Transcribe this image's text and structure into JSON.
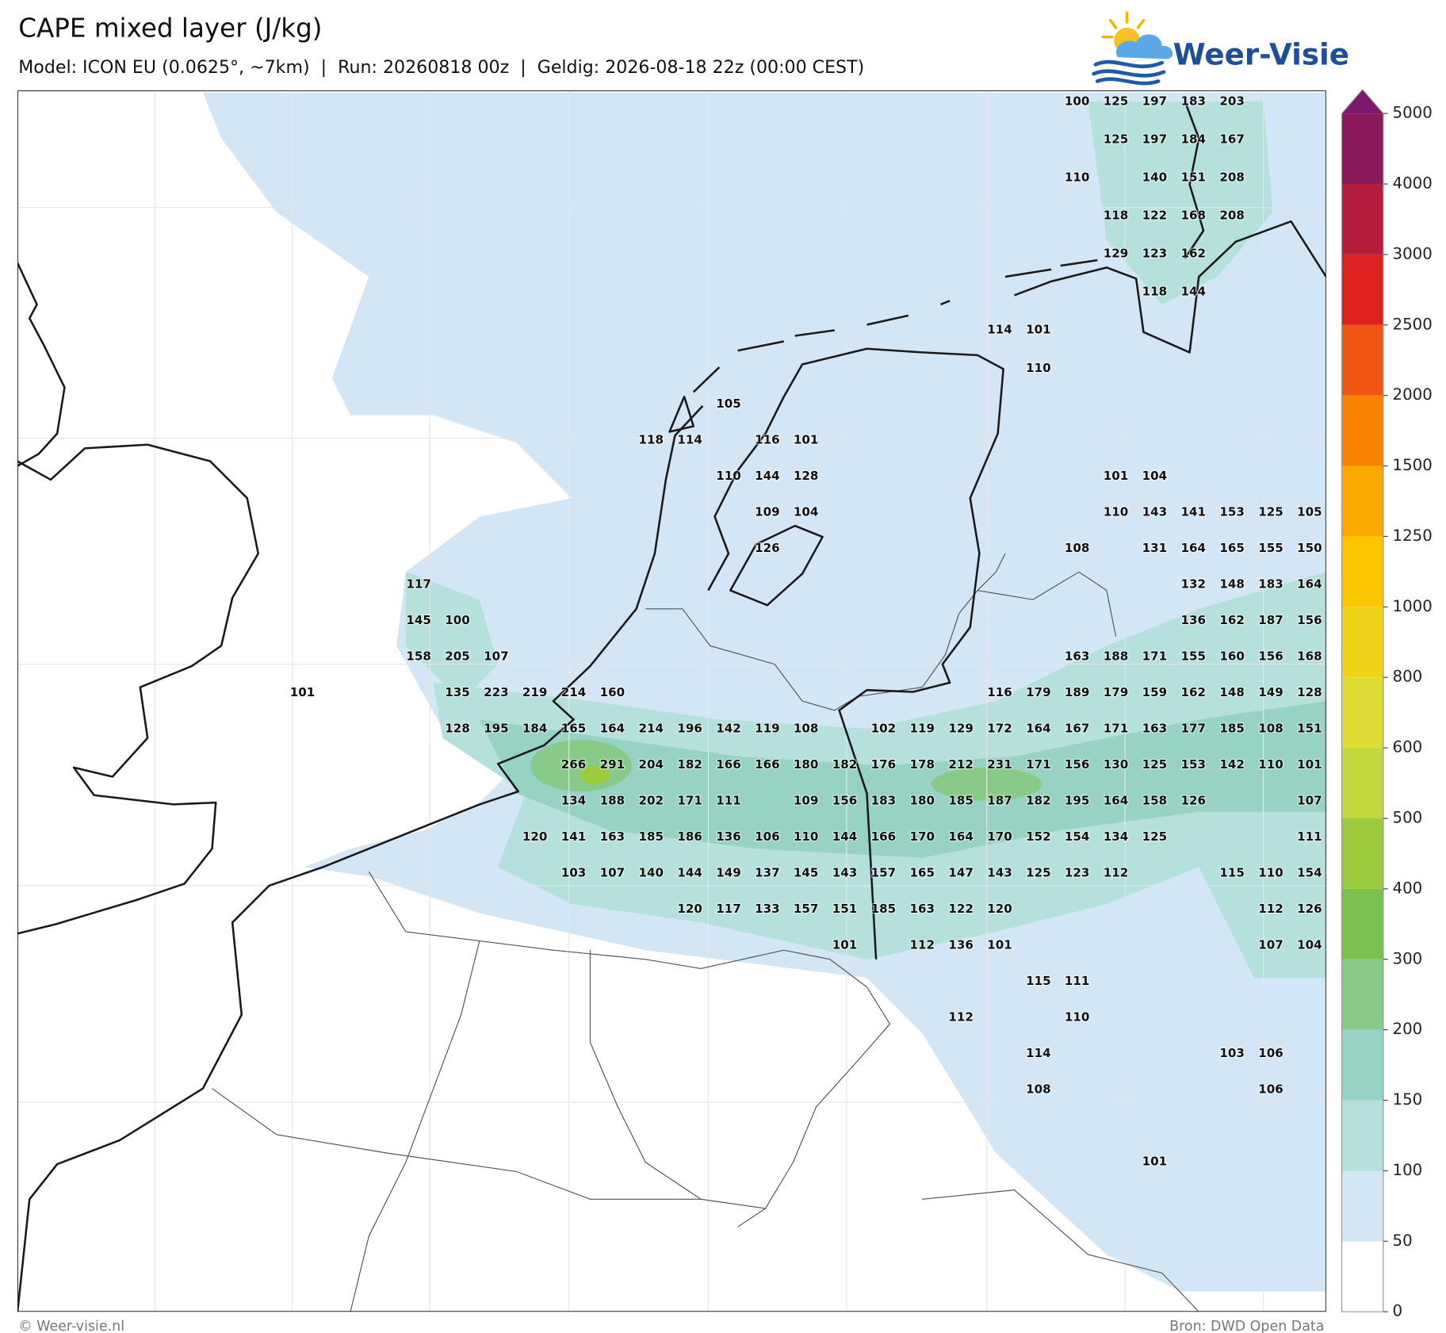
{
  "header": {
    "title": "CAPE mixed layer (J/kg)",
    "subtitle": "Model: ICON EU (0.0625°, ~7km)  |  Run: 20260818 00z  |  Geldig: 2026-08-18 22z (00:00 CEST)"
  },
  "logo": {
    "text": "Weer-Visie"
  },
  "map": {
    "labels": [
      [
        null,
        null,
        null,
        null,
        null,
        null,
        null,
        null,
        null,
        null,
        null,
        null,
        null,
        null,
        null,
        null,
        null,
        null,
        null,
        null,
        100,
        125,
        197,
        183,
        203,
        null,
        null
      ],
      [
        null,
        null,
        null,
        null,
        null,
        null,
        null,
        null,
        null,
        null,
        null,
        null,
        null,
        null,
        null,
        null,
        null,
        null,
        null,
        null,
        null,
        125,
        197,
        184,
        167,
        null,
        null
      ],
      [
        null,
        null,
        null,
        null,
        null,
        null,
        null,
        null,
        null,
        null,
        null,
        null,
        null,
        null,
        null,
        null,
        null,
        null,
        null,
        null,
        110,
        null,
        140,
        151,
        208,
        null,
        null
      ],
      [
        null,
        null,
        null,
        null,
        null,
        null,
        null,
        null,
        null,
        null,
        null,
        null,
        null,
        null,
        null,
        null,
        null,
        null,
        null,
        null,
        null,
        118,
        122,
        168,
        208,
        null,
        null
      ],
      [
        null,
        null,
        null,
        null,
        null,
        null,
        null,
        null,
        null,
        null,
        null,
        null,
        null,
        null,
        null,
        null,
        null,
        null,
        null,
        null,
        null,
        129,
        123,
        162,
        null,
        null,
        null
      ],
      [
        null,
        null,
        null,
        null,
        null,
        null,
        null,
        null,
        null,
        null,
        null,
        null,
        null,
        null,
        null,
        null,
        null,
        null,
        null,
        null,
        null,
        null,
        118,
        144,
        null,
        null,
        null
      ],
      [
        null,
        null,
        null,
        null,
        null,
        null,
        null,
        null,
        null,
        null,
        null,
        null,
        null,
        null,
        null,
        null,
        null,
        null,
        114,
        101,
        null,
        null,
        null,
        null,
        null,
        null,
        null
      ],
      [
        null,
        null,
        null,
        null,
        null,
        null,
        null,
        null,
        null,
        null,
        null,
        null,
        null,
        null,
        null,
        null,
        null,
        null,
        null,
        110,
        null,
        null,
        null,
        null,
        null,
        null,
        null
      ],
      [
        null,
        null,
        null,
        null,
        null,
        null,
        null,
        null,
        null,
        null,
        null,
        105,
        null,
        null,
        null,
        null,
        null,
        null,
        null,
        null,
        null,
        null,
        null,
        null,
        null,
        null,
        null
      ],
      [
        null,
        null,
        null,
        null,
        null,
        null,
        null,
        null,
        null,
        118,
        114,
        null,
        116,
        101,
        null,
        null,
        null,
        null,
        null,
        null,
        null,
        null,
        null,
        null,
        null,
        null,
        null
      ],
      [
        null,
        null,
        null,
        null,
        null,
        null,
        null,
        null,
        null,
        null,
        null,
        110,
        144,
        128,
        null,
        null,
        null,
        null,
        null,
        null,
        null,
        101,
        104,
        null,
        null,
        null,
        null
      ],
      [
        null,
        null,
        null,
        null,
        null,
        null,
        null,
        null,
        null,
        null,
        null,
        null,
        109,
        104,
        null,
        null,
        null,
        null,
        null,
        null,
        null,
        110,
        143,
        141,
        153,
        125,
        105
      ],
      [
        null,
        null,
        null,
        null,
        null,
        null,
        null,
        null,
        null,
        null,
        null,
        null,
        126,
        null,
        null,
        null,
        null,
        null,
        null,
        null,
        108,
        null,
        131,
        164,
        165,
        155,
        150
      ],
      [
        null,
        null,
        null,
        117,
        null,
        null,
        null,
        null,
        null,
        null,
        null,
        null,
        null,
        null,
        null,
        null,
        null,
        null,
        null,
        null,
        null,
        null,
        null,
        132,
        148,
        183,
        164
      ],
      [
        null,
        null,
        null,
        145,
        100,
        null,
        null,
        null,
        null,
        null,
        null,
        null,
        null,
        null,
        null,
        null,
        null,
        null,
        null,
        null,
        null,
        null,
        null,
        136,
        162,
        187,
        156
      ],
      [
        null,
        null,
        null,
        158,
        205,
        107,
        null,
        null,
        null,
        null,
        null,
        null,
        null,
        null,
        null,
        null,
        null,
        null,
        null,
        null,
        163,
        188,
        171,
        155,
        160,
        156,
        168
      ],
      [
        101,
        null,
        null,
        null,
        135,
        223,
        219,
        214,
        160,
        null,
        null,
        null,
        null,
        null,
        null,
        null,
        null,
        null,
        116,
        179,
        189,
        179,
        159,
        162,
        148,
        149,
        128
      ],
      [
        null,
        null,
        null,
        null,
        128,
        195,
        184,
        165,
        164,
        214,
        196,
        142,
        119,
        108,
        null,
        102,
        119,
        129,
        172,
        164,
        167,
        171,
        163,
        177,
        185,
        108,
        151
      ],
      [
        null,
        null,
        null,
        null,
        null,
        null,
        null,
        266,
        291,
        204,
        182,
        166,
        166,
        180,
        182,
        176,
        178,
        212,
        231,
        171,
        156,
        130,
        125,
        153,
        142,
        110,
        101
      ],
      [
        null,
        null,
        null,
        null,
        null,
        null,
        null,
        134,
        188,
        202,
        171,
        111,
        null,
        109,
        156,
        183,
        180,
        185,
        187,
        182,
        195,
        164,
        158,
        126,
        null,
        null,
        107
      ],
      [
        null,
        null,
        null,
        null,
        null,
        null,
        120,
        141,
        163,
        185,
        186,
        136,
        106,
        110,
        144,
        166,
        170,
        164,
        170,
        152,
        154,
        134,
        125,
        null,
        null,
        null,
        111
      ],
      [
        null,
        null,
        null,
        null,
        null,
        null,
        null,
        103,
        107,
        140,
        144,
        149,
        137,
        145,
        143,
        157,
        165,
        147,
        143,
        125,
        123,
        112,
        null,
        null,
        115,
        110,
        154
      ],
      [
        null,
        null,
        null,
        null,
        null,
        null,
        null,
        null,
        null,
        null,
        120,
        117,
        133,
        157,
        151,
        185,
        163,
        122,
        120,
        null,
        null,
        null,
        null,
        null,
        null,
        112,
        126
      ],
      [
        null,
        null,
        null,
        null,
        null,
        null,
        null,
        null,
        null,
        null,
        null,
        null,
        null,
        null,
        101,
        null,
        112,
        136,
        101,
        null,
        null,
        null,
        null,
        null,
        null,
        107,
        104
      ],
      [
        null,
        null,
        null,
        null,
        null,
        null,
        null,
        null,
        null,
        null,
        null,
        null,
        null,
        null,
        null,
        null,
        null,
        null,
        null,
        115,
        111,
        null,
        null,
        null,
        null,
        null,
        null
      ],
      [
        null,
        null,
        null,
        null,
        null,
        null,
        null,
        null,
        null,
        null,
        null,
        null,
        null,
        null,
        null,
        null,
        null,
        112,
        null,
        null,
        110,
        null,
        null,
        null,
        null,
        null,
        null
      ],
      [
        null,
        null,
        null,
        null,
        null,
        null,
        null,
        null,
        null,
        null,
        null,
        null,
        null,
        null,
        null,
        null,
        null,
        null,
        null,
        114,
        null,
        null,
        null,
        null,
        103,
        106,
        null
      ],
      [
        null,
        null,
        null,
        null,
        null,
        null,
        null,
        null,
        null,
        null,
        null,
        null,
        null,
        null,
        null,
        null,
        null,
        null,
        null,
        108,
        null,
        null,
        null,
        null,
        null,
        106,
        null
      ],
      [
        null,
        null,
        null,
        null,
        null,
        null,
        null,
        null,
        null,
        null,
        null,
        null,
        null,
        null,
        null,
        null,
        null,
        null,
        null,
        null,
        null,
        null,
        null,
        null,
        null,
        null,
        null
      ],
      [
        null,
        null,
        null,
        null,
        null,
        null,
        null,
        null,
        null,
        null,
        null,
        null,
        null,
        null,
        null,
        null,
        null,
        null,
        null,
        null,
        null,
        null,
        101,
        null,
        null,
        null,
        null
      ]
    ]
  },
  "colorbar": {
    "levels": [
      0,
      50,
      100,
      150,
      200,
      300,
      400,
      500,
      600,
      800,
      1000,
      1250,
      1500,
      2000,
      2500,
      3000,
      4000,
      5000
    ],
    "colors": [
      "#ffffff",
      "#d2e6f5",
      "#b6e0dc",
      "#96d3c4",
      "#88ca88",
      "#7ac150",
      "#9dcb3e",
      "#c2d83e",
      "#dfdc36",
      "#f1d31c",
      "#f9c600",
      "#f9a900",
      "#f98300",
      "#ee5612",
      "#dd211f",
      "#b41c3c",
      "#8b1a5c"
    ],
    "extend_color": "#7d186c"
  },
  "footer": {
    "left": "© Weer-visie.nl",
    "right": "Bron: DWD Open Data"
  }
}
